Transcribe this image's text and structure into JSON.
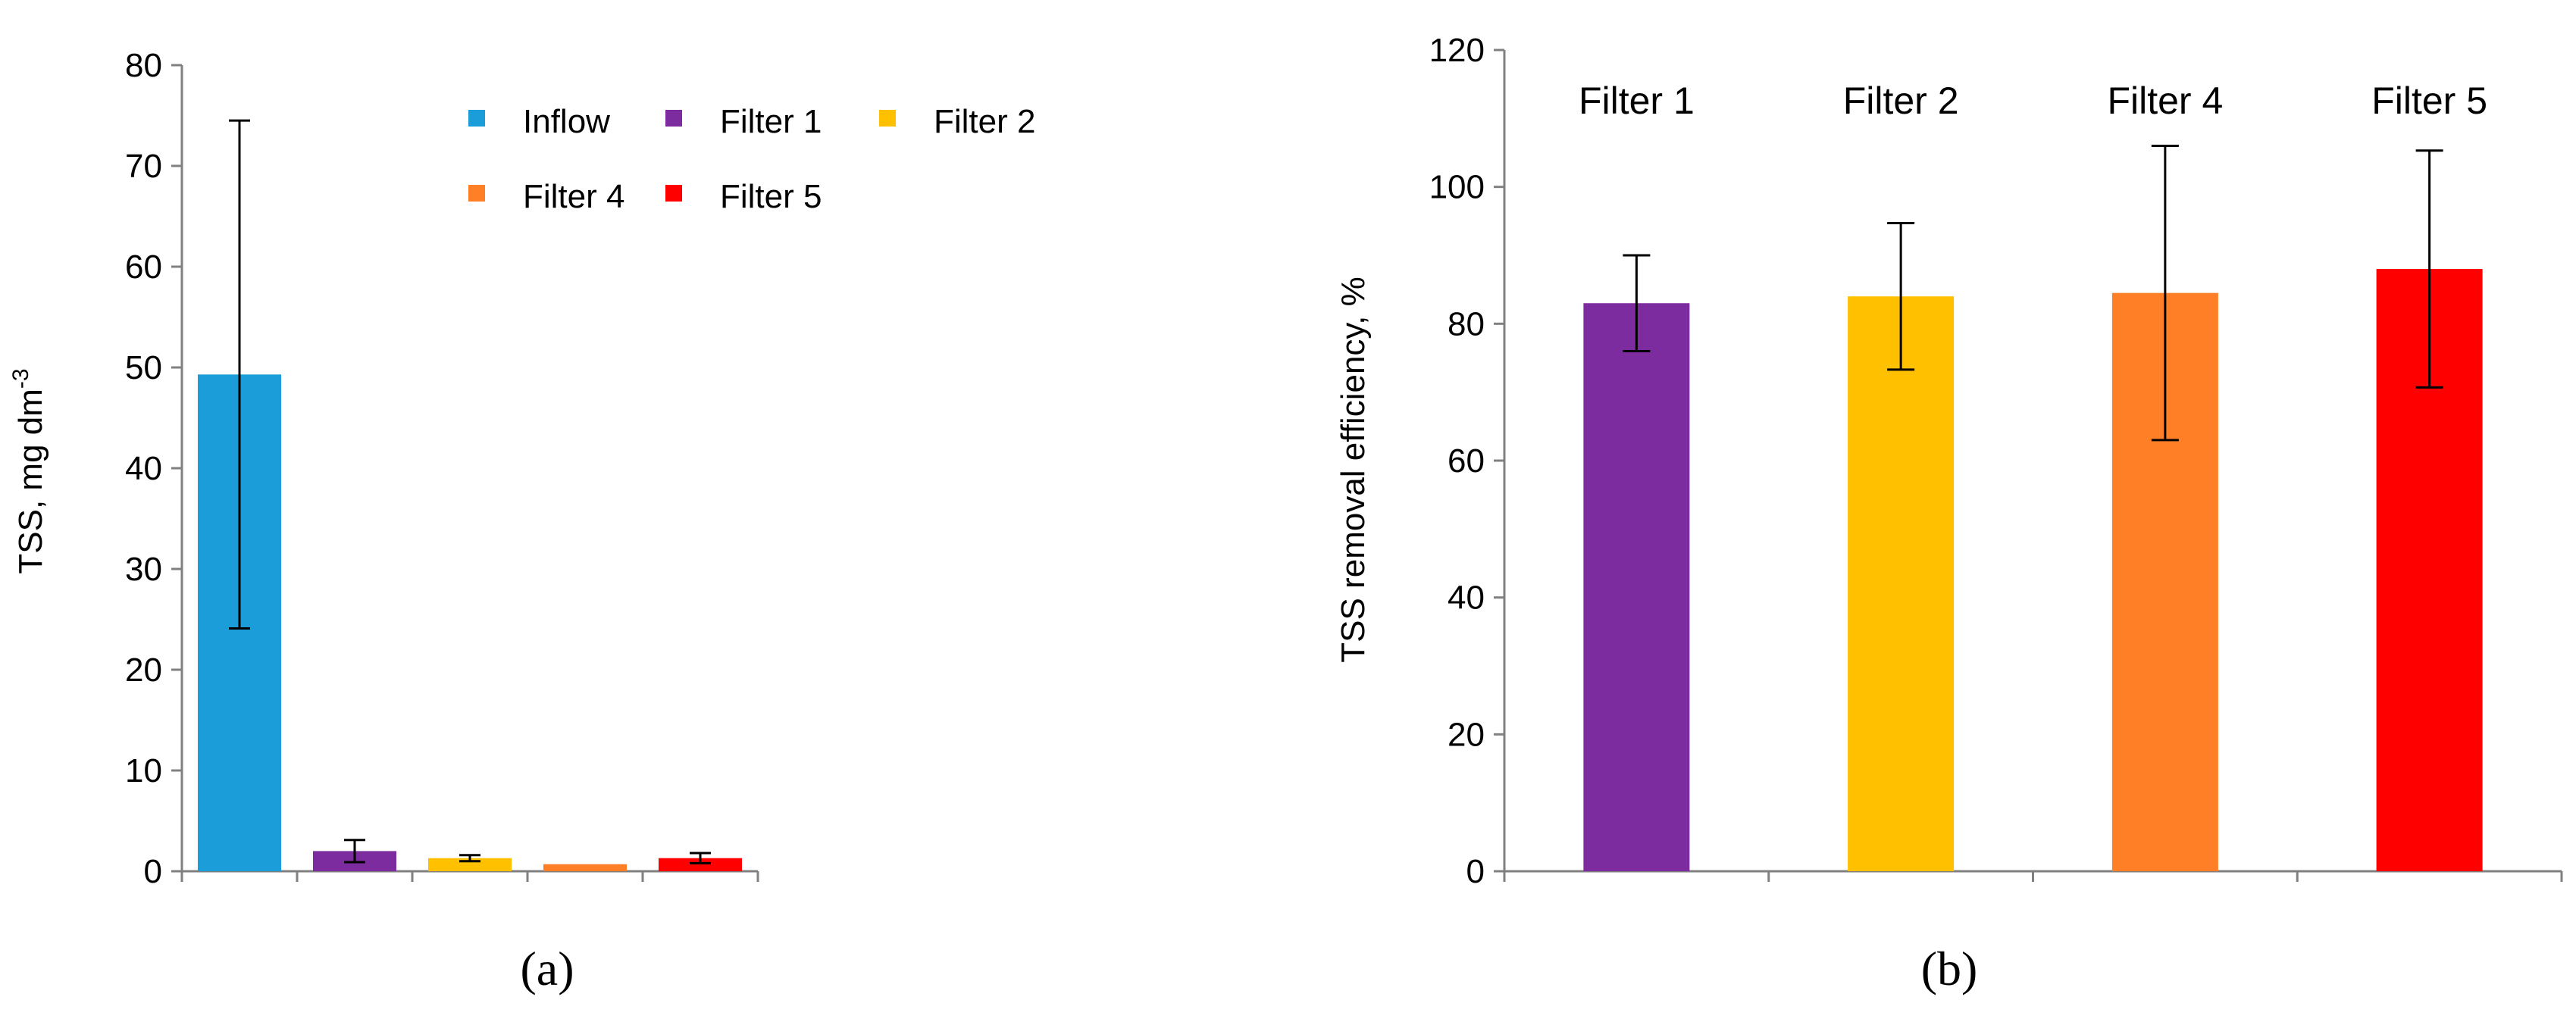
{
  "figure": {
    "panel_labels": [
      "(a)",
      "(b)"
    ]
  },
  "chart_data": [
    {
      "type": "bar",
      "panel": "(a)",
      "title": "",
      "xlabel": "",
      "ylabel": "TSS, mg dm",
      "ylabel_superscript": "-3",
      "ylim": [
        0,
        80
      ],
      "yticks": [
        0,
        10,
        20,
        30,
        40,
        50,
        60,
        70,
        80
      ],
      "grid": false,
      "legend": {
        "placement": "top-right",
        "entries": [
          "Inflow",
          "Filter 1",
          "Filter 2",
          "Filter 4",
          "Filter 5"
        ]
      },
      "categories": [
        "Inflow",
        "Filter 1",
        "Filter 2",
        "Filter 4",
        "Filter 5"
      ],
      "values": [
        49.3,
        2.0,
        1.3,
        0.7,
        1.3
      ],
      "error": [
        25.2,
        1.1,
        0.3,
        0.0,
        0.5
      ],
      "colors": [
        "#1a9dd9",
        "#7c2c9e",
        "#ffc000",
        "#ff7f27",
        "#ff0000"
      ]
    },
    {
      "type": "bar",
      "panel": "(b)",
      "title": "",
      "xlabel": "",
      "ylabel": "TSS removal efficiency, %",
      "ylim": [
        0,
        120
      ],
      "yticks": [
        0,
        20,
        40,
        60,
        80,
        100,
        120
      ],
      "grid": false,
      "categories": [
        "Filter 1",
        "Filter 2",
        "Filter 4",
        "Filter 5"
      ],
      "category_labels_position": "top",
      "values": [
        83,
        84,
        84.5,
        88
      ],
      "error": [
        7,
        10.7,
        21.5,
        17.3
      ],
      "colors": [
        "#7c2c9e",
        "#ffc000",
        "#ff7f27",
        "#ff0000"
      ]
    }
  ]
}
